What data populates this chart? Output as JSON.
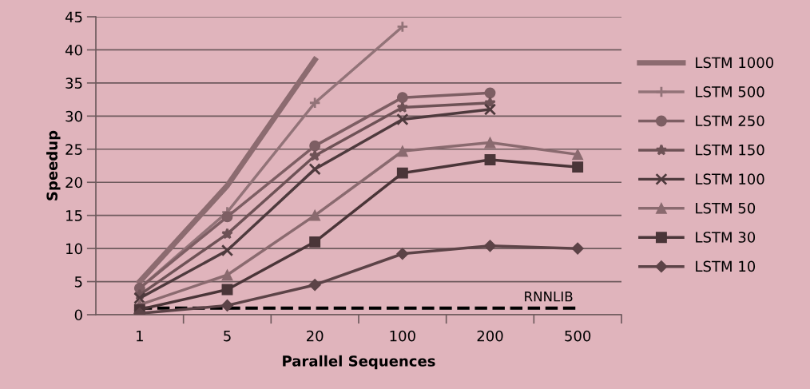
{
  "chart_data": {
    "type": "line",
    "xlabel": "Parallel Sequences",
    "ylabel": "Speedup",
    "categories": [
      "1",
      "5",
      "20",
      "100",
      "200",
      "500"
    ],
    "ylim": [
      0,
      45
    ],
    "yticks": [
      0,
      5,
      10,
      15,
      20,
      25,
      30,
      35,
      40,
      45
    ],
    "grid": "y",
    "legend": "right",
    "series": [
      {
        "name": "LSTM 1000",
        "color": "#8c6b70",
        "marker": "none",
        "values": [
          5,
          19.5,
          38.5,
          null,
          null,
          null
        ]
      },
      {
        "name": "LSTM 500",
        "color": "#927378",
        "marker": "plus",
        "values": [
          4,
          15.5,
          32,
          43.5,
          null,
          null
        ]
      },
      {
        "name": "LSTM 250",
        "color": "#7d5e63",
        "marker": "circle",
        "values": [
          4,
          14.8,
          25.5,
          32.8,
          33.5,
          null
        ]
      },
      {
        "name": "LSTM 150",
        "color": "#6e5256",
        "marker": "star",
        "values": [
          3,
          12.2,
          24,
          31.3,
          32,
          null
        ]
      },
      {
        "name": "LSTM 100",
        "color": "#4e3a3d",
        "marker": "cross",
        "values": [
          2.5,
          9.7,
          22,
          29.5,
          31,
          null
        ]
      },
      {
        "name": "LSTM 50",
        "color": "#8a6a6f",
        "marker": "triangle",
        "values": [
          1.5,
          6,
          15,
          24.7,
          26,
          24.2
        ]
      },
      {
        "name": "LSTM 30",
        "color": "#4a3538",
        "marker": "square",
        "values": [
          0.8,
          3.8,
          11,
          21.4,
          23.4,
          22.3
        ]
      },
      {
        "name": "LSTM 10",
        "color": "#5c4347",
        "marker": "diamond",
        "values": [
          0.2,
          1.4,
          4.5,
          9.2,
          10.4,
          10
        ]
      }
    ],
    "ref_lines": [
      {
        "axis": "y",
        "value": 1,
        "label": "RNNLIB",
        "color": "#000000",
        "line_style": "dashed"
      }
    ]
  }
}
